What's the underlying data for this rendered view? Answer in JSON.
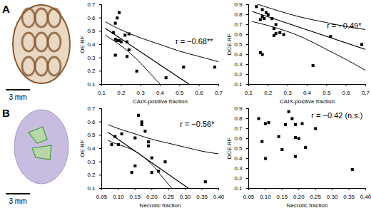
{
  "panels": [
    {
      "label": "A",
      "scale_bar": "3 mm"
    },
    {
      "label": "B",
      "scale_bar": "3 mm"
    }
  ],
  "chart_data": [
    {
      "type": "scatter",
      "panel": "A",
      "x_label": "CAIX-positive fraction",
      "y_label": "OE RF",
      "xlim": [
        0.1,
        0.7
      ],
      "ylim": [
        0.1,
        0.7
      ],
      "xticks": [
        0.1,
        0.2,
        0.3,
        0.4,
        0.5,
        0.6,
        0.7
      ],
      "yticks": [
        0.1,
        0.2,
        0.3,
        0.4,
        0.5,
        0.6,
        0.7
      ],
      "marker": "square",
      "color": "#000000",
      "annotation": "r = −0.68**",
      "x": [
        0.18,
        0.19,
        0.17,
        0.16,
        0.17,
        0.19,
        0.18,
        0.2,
        0.22,
        0.24,
        0.23,
        0.24,
        0.23,
        0.17,
        0.28,
        0.43,
        0.52,
        0.68
      ],
      "y": [
        0.6,
        0.64,
        0.56,
        0.49,
        0.44,
        0.43,
        0.43,
        0.42,
        0.47,
        0.48,
        0.42,
        0.36,
        0.31,
        0.32,
        0.2,
        0.15,
        0.23,
        0.23
      ],
      "fit_line": {
        "x": [
          0.12,
          0.55
        ],
        "y": [
          0.52,
          0.1
        ]
      },
      "confidence_band": {
        "upper": {
          "x": [
            0.12,
            0.2,
            0.3,
            0.4,
            0.5,
            0.6,
            0.7
          ],
          "y": [
            0.57,
            0.51,
            0.45,
            0.4,
            0.35,
            0.31,
            0.27
          ]
        },
        "lower": {
          "x": [
            0.12,
            0.2,
            0.25,
            0.3,
            0.35,
            0.4
          ],
          "y": [
            0.47,
            0.39,
            0.33,
            0.26,
            0.18,
            0.1
          ]
        }
      }
    },
    {
      "type": "scatter",
      "panel": "A",
      "x_label": "CAIX-positive fraction",
      "y_label": "DCE RF",
      "xlim": [
        0.1,
        0.7
      ],
      "ylim": [
        0.1,
        0.9
      ],
      "xticks": [
        0.1,
        0.2,
        0.3,
        0.4,
        0.5,
        0.6,
        0.7
      ],
      "yticks": [
        0.1,
        0.2,
        0.3,
        0.4,
        0.5,
        0.6,
        0.7,
        0.8,
        0.9
      ],
      "marker": "square",
      "color": "#000000",
      "annotation": "r = −0.49*",
      "x": [
        0.14,
        0.17,
        0.19,
        0.2,
        0.18,
        0.16,
        0.17,
        0.22,
        0.23,
        0.24,
        0.23,
        0.26,
        0.28,
        0.16,
        0.17,
        0.43,
        0.52,
        0.68,
        0.24
      ],
      "y": [
        0.88,
        0.85,
        0.82,
        0.8,
        0.76,
        0.75,
        0.78,
        0.76,
        0.66,
        0.7,
        0.59,
        0.62,
        0.6,
        0.42,
        0.4,
        0.29,
        0.58,
        0.5,
        0.61
      ],
      "fit_line": {
        "x": [
          0.12,
          0.7
        ],
        "y": [
          0.83,
          0.45
        ]
      },
      "confidence_band": {
        "upper": {
          "x": [
            0.12,
            0.2,
            0.3,
            0.4,
            0.5,
            0.6,
            0.7
          ],
          "y": [
            0.92,
            0.87,
            0.81,
            0.76,
            0.72,
            0.68,
            0.65
          ]
        },
        "lower": {
          "x": [
            0.12,
            0.2,
            0.3,
            0.4,
            0.5,
            0.6,
            0.7
          ],
          "y": [
            0.73,
            0.69,
            0.63,
            0.55,
            0.45,
            0.35,
            0.24
          ]
        }
      }
    },
    {
      "type": "scatter",
      "panel": "B",
      "x_label": "Necrotic fraction",
      "y_label": "OE RF",
      "xlim": [
        0.05,
        0.4
      ],
      "ylim": [
        0.1,
        0.7
      ],
      "xticks": [
        0.05,
        {
          "value": 0.1,
          "label": "0.10"
        },
        0.15,
        {
          "value": 0.2,
          "label": "0.20"
        },
        0.25,
        {
          "value": 0.3,
          "label": "0.30"
        },
        0.35,
        {
          "value": 0.4,
          "label": "0.40"
        }
      ],
      "yticks": [
        0.1,
        0.2,
        0.3,
        0.4,
        0.5,
        0.6,
        0.7
      ],
      "marker": "square",
      "color": "#000000",
      "annotation": "r = −0.56*",
      "x": [
        0.09,
        0.08,
        0.1,
        0.11,
        0.15,
        0.16,
        0.17,
        0.17,
        0.18,
        0.19,
        0.19,
        0.2,
        0.14,
        0.15,
        0.2,
        0.22,
        0.24,
        0.36
      ],
      "y": [
        0.49,
        0.43,
        0.43,
        0.51,
        0.48,
        0.65,
        0.6,
        0.58,
        0.53,
        0.42,
        0.45,
        0.22,
        0.22,
        0.27,
        0.33,
        0.23,
        0.3,
        0.15
      ],
      "fit_line": {
        "x": [
          0.07,
          0.31
        ],
        "y": [
          0.52,
          0.1
        ]
      },
      "confidence_band": {
        "upper": {
          "x": [
            0.07,
            0.1,
            0.15,
            0.2,
            0.25,
            0.3,
            0.35,
            0.4
          ],
          "y": [
            0.58,
            0.55,
            0.51,
            0.47,
            0.44,
            0.41,
            0.38,
            0.36
          ]
        },
        "lower": {
          "x": [
            0.07,
            0.1,
            0.15,
            0.2,
            0.23,
            0.26
          ],
          "y": [
            0.46,
            0.43,
            0.38,
            0.28,
            0.19,
            0.1
          ]
        }
      }
    },
    {
      "type": "scatter",
      "panel": "B",
      "x_label": "Necrotic fraction",
      "y_label": "DCE RF",
      "xlim": [
        0.05,
        0.4
      ],
      "ylim": [
        0.1,
        0.9
      ],
      "xticks": [
        0.05,
        {
          "value": 0.1,
          "label": "0.10"
        },
        0.15,
        {
          "value": 0.2,
          "label": "0.20"
        },
        0.25,
        {
          "value": 0.3,
          "label": "0.30"
        },
        0.35,
        {
          "value": 0.4,
          "label": "0.40"
        }
      ],
      "yticks": [
        0.1,
        0.2,
        0.3,
        0.4,
        0.5,
        0.6,
        0.7,
        0.8,
        0.9
      ],
      "marker": "square",
      "color": "#000000",
      "annotation": "r = −0.42 (n.s.)",
      "x": [
        0.08,
        0.09,
        0.1,
        0.11,
        0.1,
        0.14,
        0.15,
        0.16,
        0.17,
        0.18,
        0.19,
        0.19,
        0.2,
        0.19,
        0.21,
        0.22,
        0.25,
        0.36
      ],
      "y": [
        0.8,
        0.57,
        0.75,
        0.76,
        0.4,
        0.62,
        0.49,
        0.74,
        0.87,
        0.8,
        0.74,
        0.61,
        0.6,
        0.42,
        0.75,
        0.51,
        0.7,
        0.29
      ]
    }
  ]
}
